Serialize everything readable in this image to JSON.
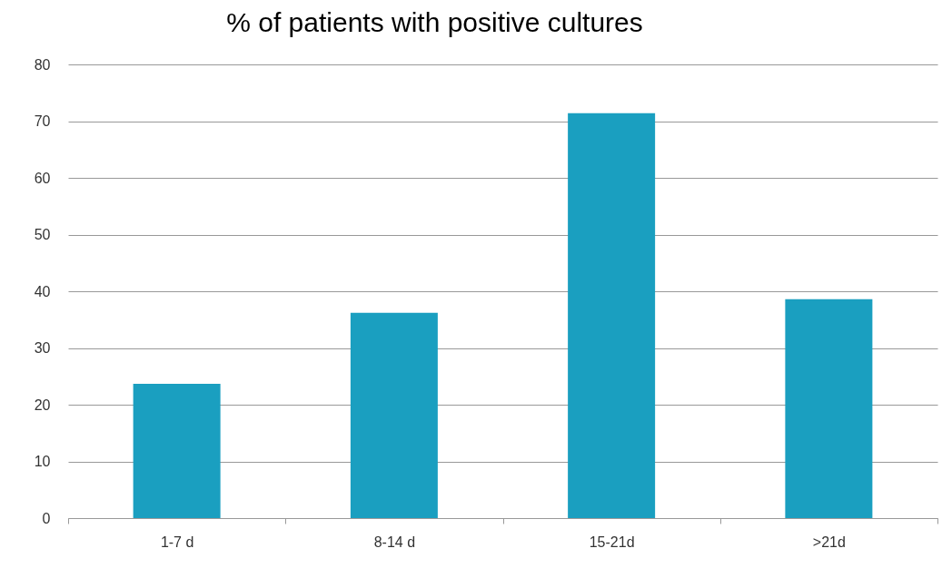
{
  "chart_data": {
    "type": "bar",
    "title": "% of patients with positive cultures",
    "categories": [
      "1-7 d",
      "8-14 d",
      "15-21d",
      ">21d"
    ],
    "values": [
      23.7,
      36.2,
      71.4,
      38.6
    ],
    "color": "#1a9fc0",
    "ylim": [
      0,
      80
    ],
    "yticks": [
      0,
      10,
      20,
      30,
      40,
      50,
      60,
      70,
      80
    ],
    "grid": "y"
  }
}
